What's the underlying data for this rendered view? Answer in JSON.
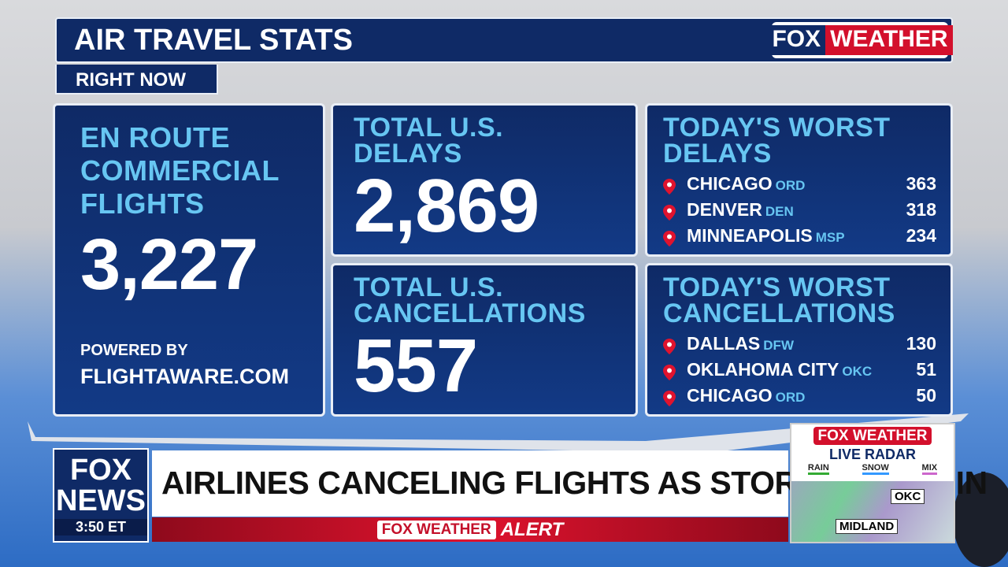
{
  "header": {
    "title": "AIR TRAVEL STATS",
    "subtitle": "RIGHT NOW",
    "brand": [
      "FOX",
      "WEATHER"
    ]
  },
  "panels": {
    "en_route": {
      "label": [
        "EN ROUTE",
        "COMMERCIAL",
        "FLIGHTS"
      ],
      "value": "3,227",
      "credit": [
        "POWERED BY",
        "FLIGHTAWARE.COM"
      ]
    },
    "delays": {
      "label": [
        "TOTAL U.S.",
        "DELAYS"
      ],
      "value": "2,869"
    },
    "cancellations": {
      "label": [
        "TOTAL U.S.",
        "CANCELLATIONS"
      ],
      "value": "557"
    },
    "worst_delays": {
      "label": [
        "TODAY'S WORST",
        "DELAYS"
      ],
      "rows": [
        {
          "city": "CHICAGO",
          "code": "ORD",
          "value": "363"
        },
        {
          "city": "DENVER",
          "code": "DEN",
          "value": "318"
        },
        {
          "city": "MINNEAPOLIS",
          "code": "MSP",
          "value": "234"
        }
      ]
    },
    "worst_cancellations": {
      "label": [
        "TODAY'S WORST",
        "CANCELLATIONS"
      ],
      "rows": [
        {
          "city": "DALLAS",
          "code": "DFW",
          "value": "130"
        },
        {
          "city": "OKLAHOMA CITY",
          "code": "OKC",
          "value": "51"
        },
        {
          "city": "CHICAGO",
          "code": "ORD",
          "value": "50"
        }
      ]
    }
  },
  "lower_third": {
    "network": [
      "FOX",
      "NEWS"
    ],
    "time": "3:50 ET",
    "headline": "AIRLINES CANCELING FLIGHTS AS STORM MOVES IN",
    "alert": [
      "FOX WEATHER",
      "ALERT"
    ]
  },
  "radar": {
    "brand": "FOX WEATHER",
    "title": "LIVE RADAR",
    "legend": [
      "RAIN",
      "SNOW",
      "MIX"
    ],
    "places": [
      "OKC",
      "MIDLAND"
    ]
  }
}
